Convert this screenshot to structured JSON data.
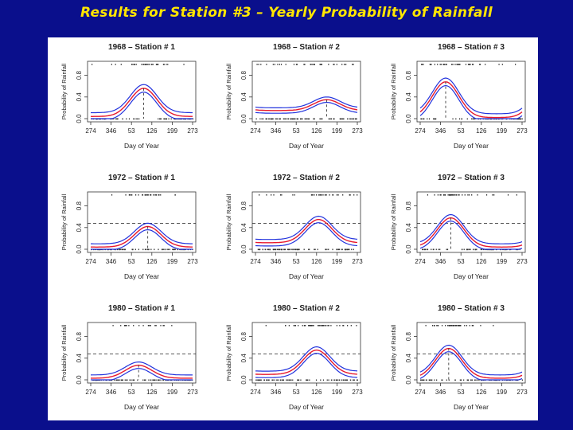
{
  "slide": {
    "title": "Results for Station #3 – Yearly Probability of Rainfall",
    "colors": {
      "background": "#0a0f8c",
      "title": "#ffe600",
      "fit": "#e8192c",
      "band": "#2233dd"
    }
  },
  "chart_data": [
    {
      "type": "line",
      "title": "1968 – Station # 1",
      "xlabel": "Day of Year",
      "ylabel": "Probability of Rainfall",
      "x_ticks": [
        "274",
        "346",
        "53",
        "126",
        "199",
        "273"
      ],
      "y_ticks": [
        "0.0",
        "0.4",
        "0.8"
      ],
      "ylim": [
        0,
        1
      ],
      "peak": 0.56,
      "peak_x": 0.52,
      "baseline": 0.04,
      "band": 0.07,
      "hline": null,
      "vline": true
    },
    {
      "type": "line",
      "title": "1968 – Station # 2",
      "xlabel": "Day of Year",
      "ylabel": "Probability of Rainfall",
      "x_ticks": [
        "274",
        "346",
        "53",
        "126",
        "199",
        "273"
      ],
      "y_ticks": [
        "0.0",
        "0.4",
        "0.8"
      ],
      "ylim": [
        0,
        1
      ],
      "peak": 0.35,
      "peak_x": 0.7,
      "baseline": 0.15,
      "band": 0.05,
      "hline": null,
      "vline": true
    },
    {
      "type": "line",
      "title": "1968 – Station # 3",
      "xlabel": "Day of Year",
      "ylabel": "Probability of Rainfall",
      "x_ticks": [
        "274",
        "346",
        "53",
        "126",
        "199",
        "273"
      ],
      "y_ticks": [
        "0.0",
        "0.4",
        "0.8"
      ],
      "ylim": [
        0,
        1
      ],
      "peak": 0.68,
      "peak_x": 0.25,
      "baseline": 0.02,
      "band": 0.07,
      "hline": null,
      "vline": true
    },
    {
      "type": "line",
      "title": "1972 – Station # 1",
      "xlabel": "Day of Year",
      "ylabel": "Probability of Rainfall",
      "x_ticks": [
        "274",
        "346",
        "53",
        "126",
        "199",
        "273"
      ],
      "y_ticks": [
        "0.0",
        "0.4",
        "0.8"
      ],
      "ylim": [
        0,
        1
      ],
      "peak": 0.42,
      "peak_x": 0.56,
      "baseline": 0.04,
      "band": 0.06,
      "hline": 0.48,
      "vline": true
    },
    {
      "type": "line",
      "title": "1972 – Station # 2",
      "xlabel": "Day of Year",
      "ylabel": "Probability of Rainfall",
      "x_ticks": [
        "274",
        "346",
        "53",
        "126",
        "199",
        "273"
      ],
      "y_ticks": [
        "0.0",
        "0.4",
        "0.8"
      ],
      "ylim": [
        0,
        1
      ],
      "peak": 0.55,
      "peak_x": 0.62,
      "baseline": 0.12,
      "band": 0.06,
      "hline": 0.48,
      "vline": false
    },
    {
      "type": "line",
      "title": "1972 – Station # 3",
      "xlabel": "Day of Year",
      "ylabel": "Probability of Rainfall",
      "x_ticks": [
        "274",
        "346",
        "53",
        "126",
        "199",
        "273"
      ],
      "y_ticks": [
        "0.0",
        "0.4",
        "0.8"
      ],
      "ylim": [
        0,
        1
      ],
      "peak": 0.58,
      "peak_x": 0.3,
      "baseline": 0.04,
      "band": 0.06,
      "hline": 0.48,
      "vline": true
    },
    {
      "type": "line",
      "title": "1980 – Station # 1",
      "xlabel": "Day of Year",
      "ylabel": "Probability of Rainfall",
      "x_ticks": [
        "274",
        "346",
        "53",
        "126",
        "199",
        "273"
      ],
      "y_ticks": [
        "0.0",
        "0.4",
        "0.8"
      ],
      "ylim": [
        0,
        1
      ],
      "peak": 0.27,
      "peak_x": 0.47,
      "baseline": 0.03,
      "band": 0.06,
      "hline": 0.48,
      "vline": true
    },
    {
      "type": "line",
      "title": "1980 – Station # 2",
      "xlabel": "Day of Year",
      "ylabel": "Probability of Rainfall",
      "x_ticks": [
        "274",
        "346",
        "53",
        "126",
        "199",
        "273"
      ],
      "y_ticks": [
        "0.0",
        "0.4",
        "0.8"
      ],
      "ylim": [
        0,
        1
      ],
      "peak": 0.55,
      "peak_x": 0.6,
      "baseline": 0.1,
      "band": 0.06,
      "hline": 0.48,
      "vline": false
    },
    {
      "type": "line",
      "title": "1980 – Station # 3",
      "xlabel": "Day of Year",
      "ylabel": "Probability of Rainfall",
      "x_ticks": [
        "274",
        "346",
        "53",
        "126",
        "199",
        "273"
      ],
      "y_ticks": [
        "0.0",
        "0.4",
        "0.8"
      ],
      "ylim": [
        0,
        1
      ],
      "peak": 0.58,
      "peak_x": 0.28,
      "baseline": 0.03,
      "band": 0.06,
      "hline": 0.48,
      "vline": true
    }
  ]
}
